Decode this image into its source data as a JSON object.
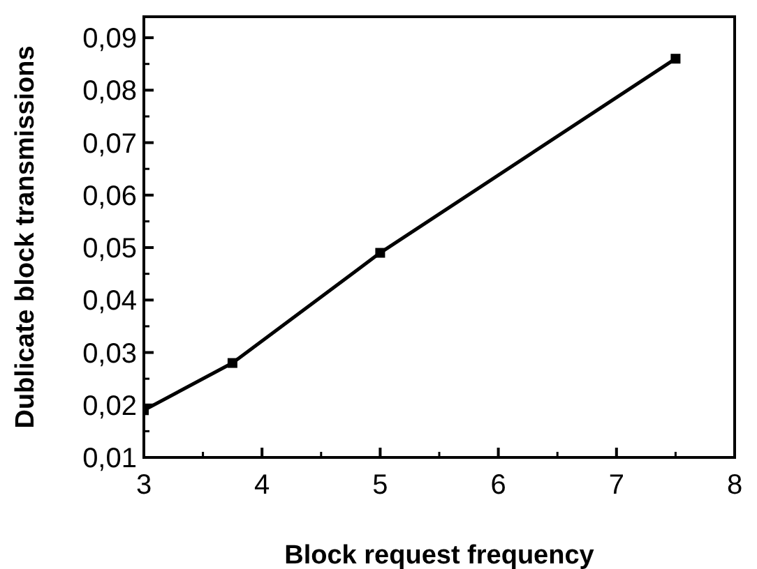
{
  "chart_data": {
    "type": "line",
    "xlabel": "Block request frequency",
    "ylabel": "Dublicate block transmissions",
    "x": [
      3,
      3.75,
      5,
      7.5
    ],
    "series": [
      {
        "color": "#000000",
        "values": [
          0.019,
          0.028,
          0.049,
          0.086
        ]
      }
    ],
    "xlim": [
      3,
      8
    ],
    "xticks": [
      3,
      4,
      5,
      6,
      7,
      8
    ],
    "ylim": [
      0.01,
      0.094
    ],
    "yticks": [
      {
        "value": 0.01,
        "label": "0,01"
      },
      {
        "value": 0.02,
        "label": "0,02"
      },
      {
        "value": 0.03,
        "label": "0,03"
      },
      {
        "value": 0.04,
        "label": "0,04"
      },
      {
        "value": 0.05,
        "label": "0,05"
      },
      {
        "value": 0.06,
        "label": "0,06"
      },
      {
        "value": 0.07,
        "label": "0,07"
      },
      {
        "value": 0.08,
        "label": "0,08"
      },
      {
        "value": 0.09,
        "label": "0,09"
      }
    ],
    "marker": "square",
    "line_style": "solid",
    "grid": false
  }
}
